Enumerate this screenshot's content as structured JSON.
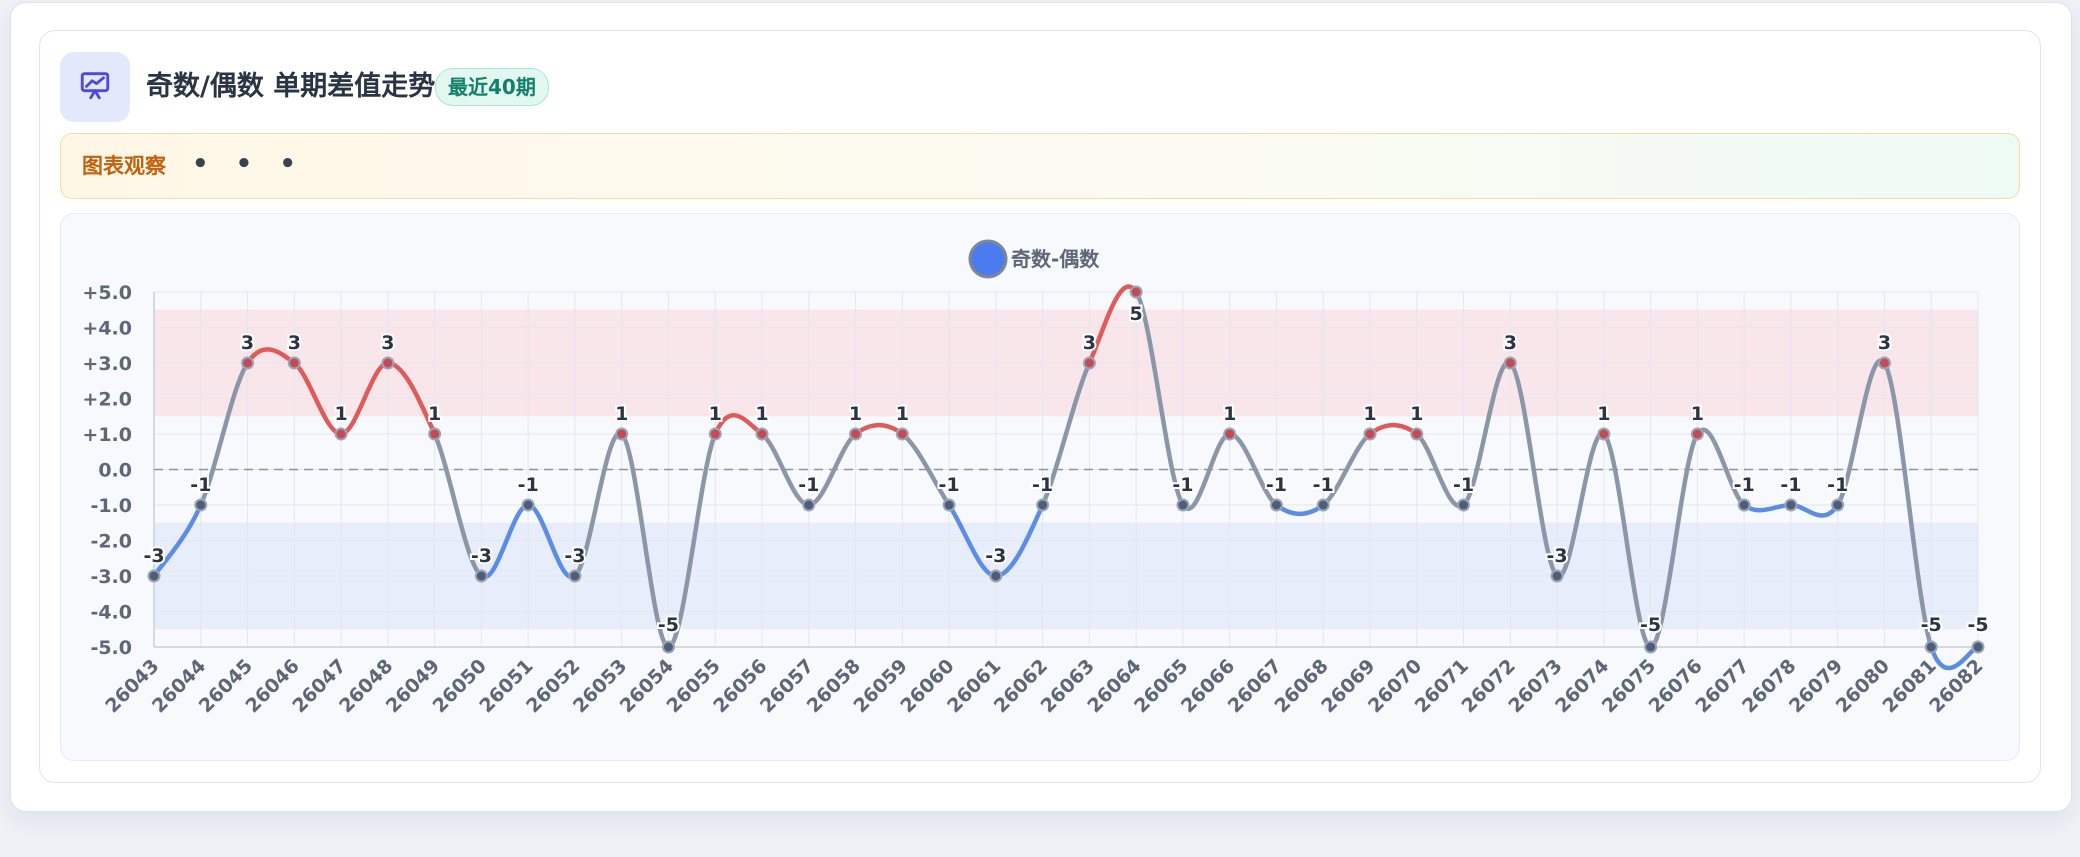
{
  "header": {
    "title": "奇数/偶数 单期差值走势",
    "badge": "最近40期",
    "icon": "presentation-chart-icon"
  },
  "observation": {
    "label": "图表观察",
    "dots": "• • •"
  },
  "colors": {
    "positive": "#e05a5a",
    "negative": "#5b8de8",
    "neutral": "#8b96a8",
    "accent": "#4f46e5"
  },
  "chart_data": {
    "type": "line",
    "legend": [
      "奇数-偶数"
    ],
    "x": [
      "26043",
      "26044",
      "26045",
      "26046",
      "26047",
      "26048",
      "26049",
      "26050",
      "26051",
      "26052",
      "26053",
      "26054",
      "26055",
      "26056",
      "26057",
      "26058",
      "26059",
      "26060",
      "26061",
      "26062",
      "26063",
      "26064",
      "26065",
      "26066",
      "26067",
      "26068",
      "26069",
      "26070",
      "26071",
      "26072",
      "26073",
      "26074",
      "26075",
      "26076",
      "26077",
      "26078",
      "26079",
      "26080",
      "26081",
      "26082"
    ],
    "series": [
      {
        "name": "奇数-偶数",
        "values": [
          -3,
          -1,
          3,
          3,
          1,
          3,
          1,
          -3,
          -1,
          -3,
          1,
          -5,
          1,
          1,
          -1,
          1,
          1,
          -1,
          -3,
          -1,
          3,
          5,
          -1,
          1,
          -1,
          -1,
          1,
          1,
          -1,
          3,
          -3,
          1,
          -5,
          1,
          -1,
          -1,
          -1,
          3,
          -5,
          -5
        ]
      }
    ],
    "ylim": [
      -5,
      5
    ],
    "yticks": [
      "+5.0",
      "+4.0",
      "+3.0",
      "+2.0",
      "+1.0",
      "0.0",
      "-1.0",
      "-2.0",
      "-3.0",
      "-4.0",
      "-5.0"
    ],
    "bands": [
      {
        "from": 1.5,
        "to": 4.5,
        "color": "#f8e6ea"
      },
      {
        "from": -4.5,
        "to": -1.5,
        "color": "#e7edfa"
      }
    ],
    "reference_line": 0,
    "grid": true,
    "legend_position": "top-center"
  }
}
